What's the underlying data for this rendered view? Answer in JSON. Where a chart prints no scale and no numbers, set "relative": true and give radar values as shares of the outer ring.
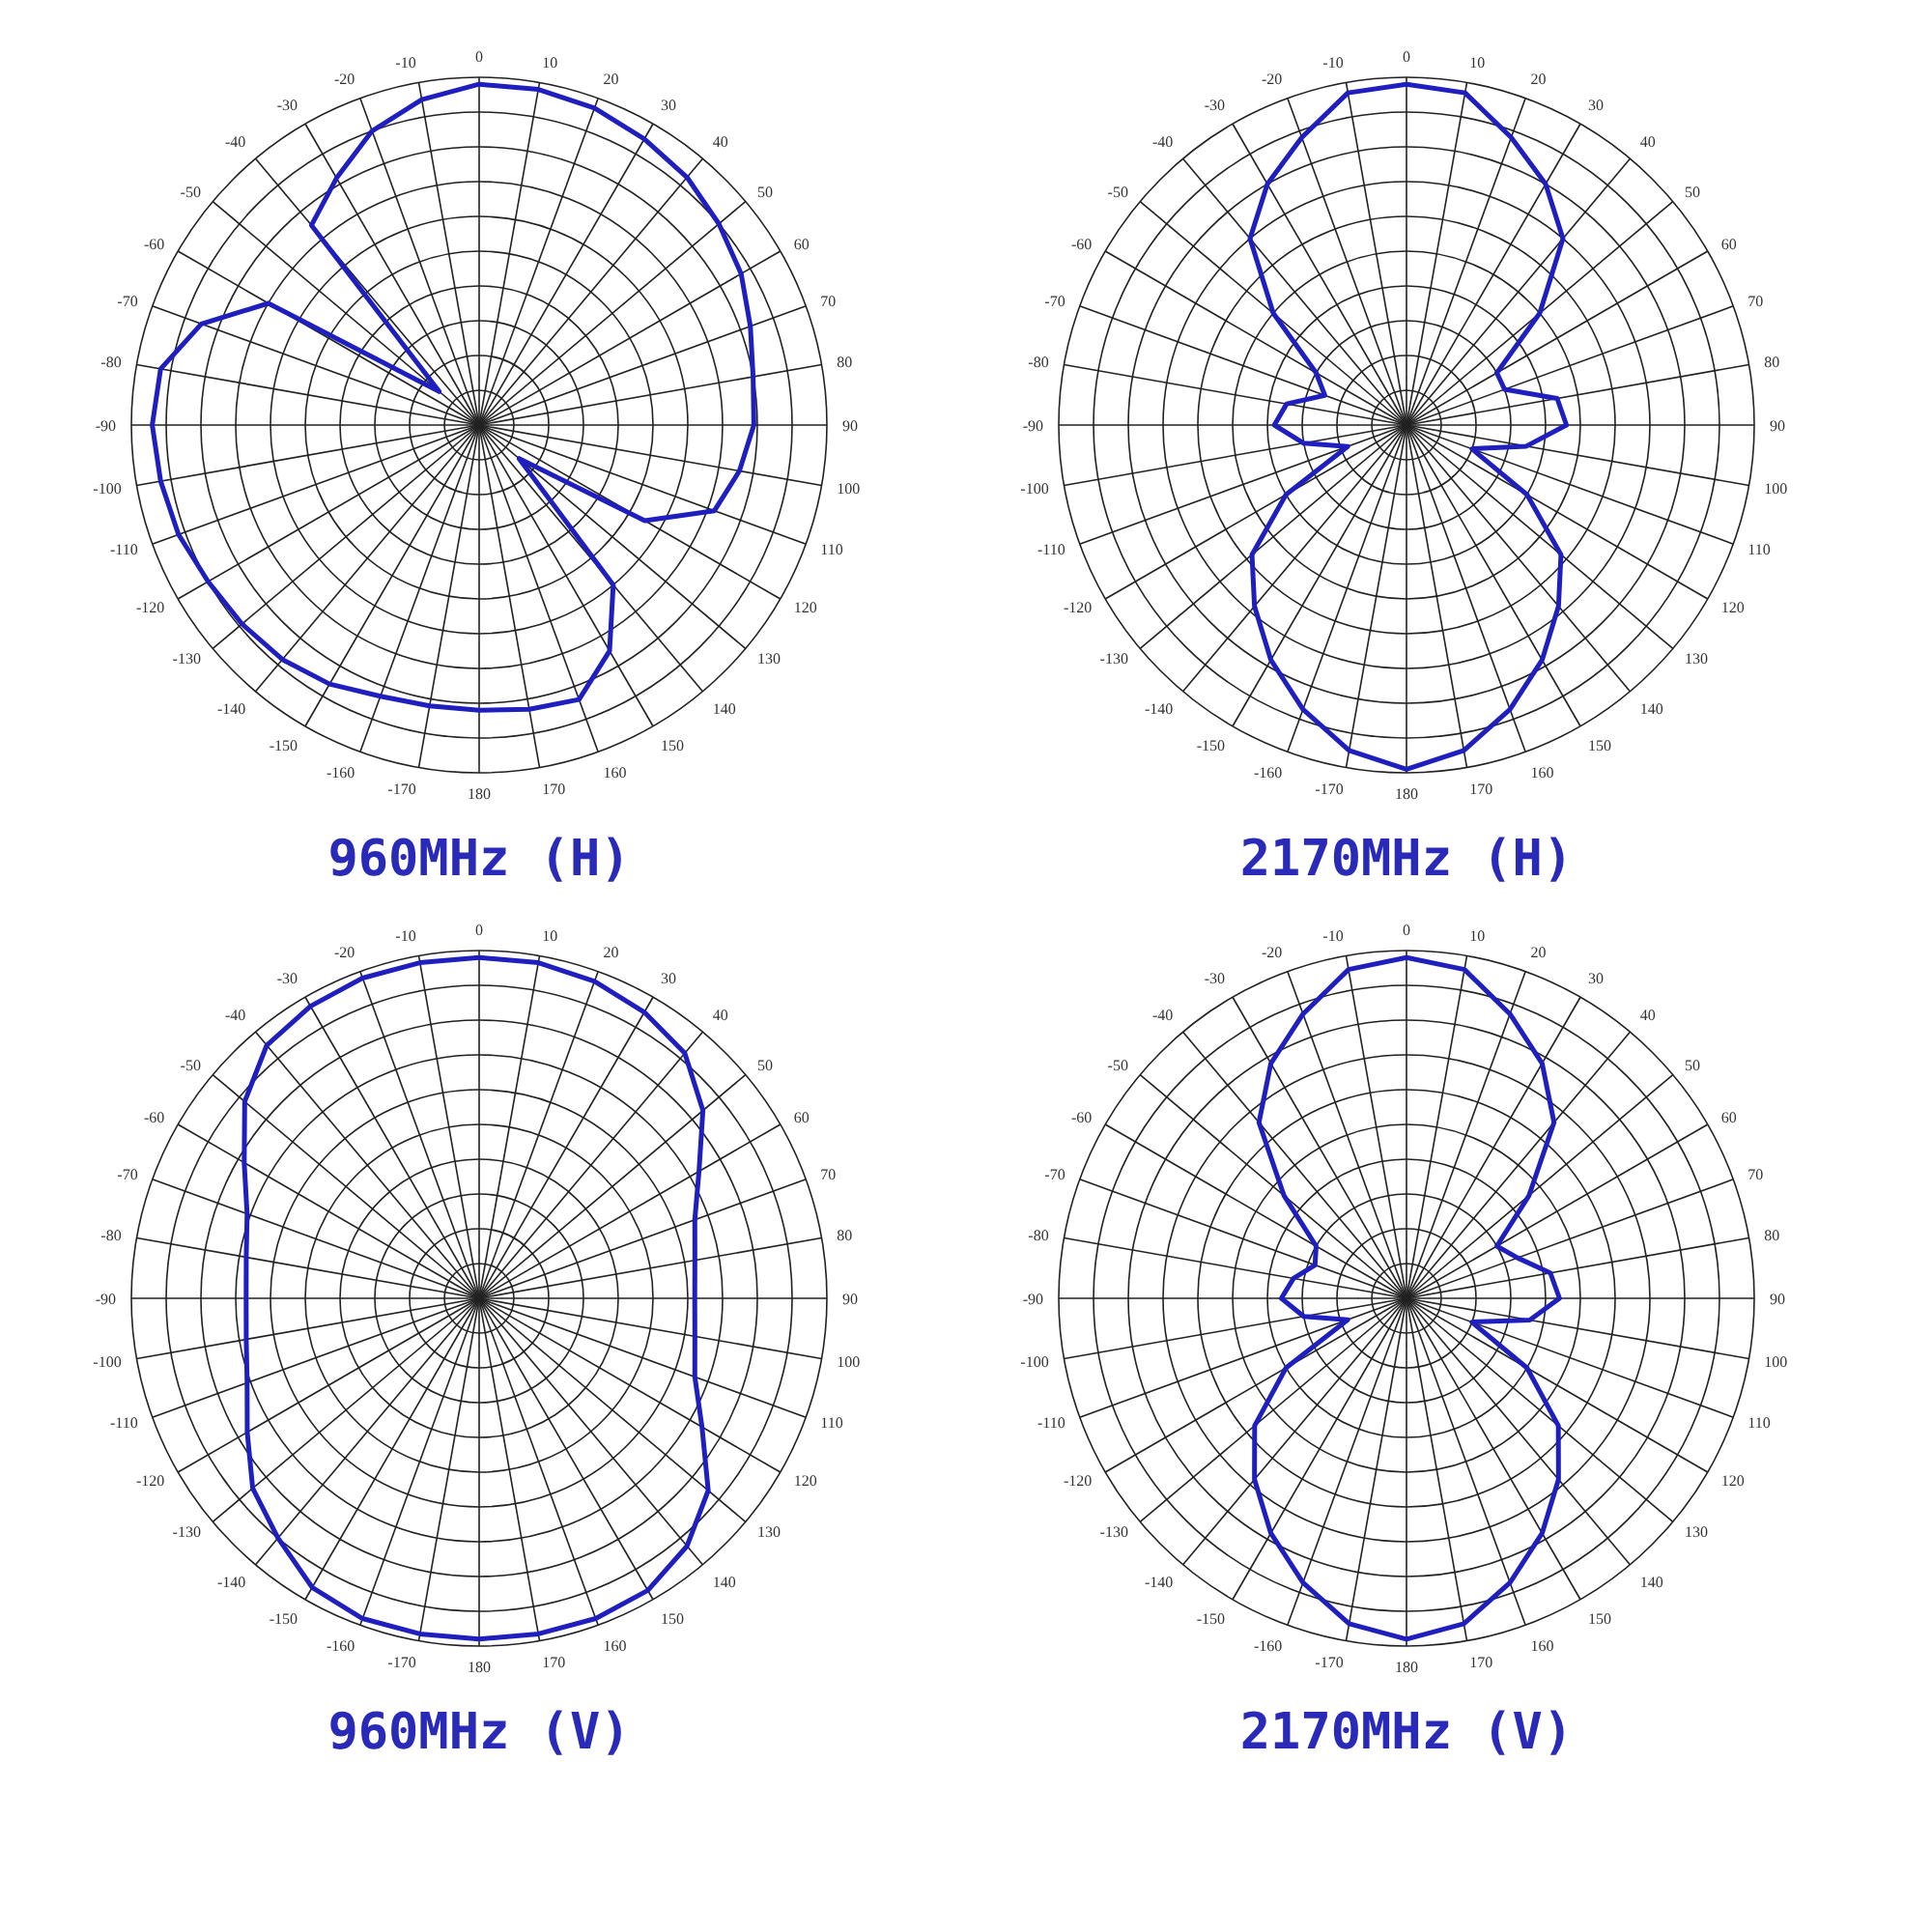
{
  "chart_data": [
    {
      "type": "radar",
      "title": "960MHz (H)",
      "categories": [
        "0",
        "10",
        "20",
        "30",
        "40",
        "50",
        "60",
        "70",
        "80",
        "90",
        "100",
        "110",
        "120",
        "130",
        "140",
        "150",
        "160",
        "170",
        "180",
        "-170",
        "-160",
        "-150",
        "-140",
        "-130",
        "-120",
        "-110",
        "-100",
        "-90",
        "-80",
        "-70",
        "-60",
        "-50",
        "-40",
        "-30",
        "-20",
        "-10"
      ],
      "relative": true,
      "grid": true,
      "marker": "none",
      "series": [
        {
          "color": "#1f1fbf",
          "values": [
            0.98,
            0.98,
            0.97,
            0.95,
            0.93,
            0.9,
            0.87,
            0.83,
            0.8,
            0.79,
            0.76,
            0.72,
            0.55,
            0.15,
            0.6,
            0.75,
            0.84,
            0.83,
            0.82,
            0.82,
            0.83,
            0.86,
            0.88,
            0.89,
            0.9,
            0.92,
            0.93,
            0.94,
            0.93,
            0.85,
            0.7,
            0.15,
            0.75,
            0.82,
            0.9,
            0.95
          ]
        }
      ]
    },
    {
      "type": "radar",
      "title": "2170MHz (H)",
      "categories": [
        "0",
        "10",
        "20",
        "30",
        "40",
        "50",
        "60",
        "70",
        "80",
        "90",
        "100",
        "110",
        "120",
        "130",
        "140",
        "150",
        "160",
        "170",
        "180",
        "-170",
        "-160",
        "-150",
        "-140",
        "-130",
        "-120",
        "-110",
        "-100",
        "-90",
        "-80",
        "-70",
        "-60",
        "-50",
        "-40",
        "-30",
        "-20",
        "-10"
      ],
      "relative": true,
      "grid": true,
      "marker": "none",
      "series": [
        {
          "color": "#1f1fbf",
          "values": [
            0.98,
            0.97,
            0.88,
            0.8,
            0.7,
            0.5,
            0.3,
            0.3,
            0.44,
            0.46,
            0.35,
            0.2,
            0.4,
            0.58,
            0.68,
            0.78,
            0.87,
            0.95,
            0.99,
            0.95,
            0.87,
            0.78,
            0.68,
            0.58,
            0.4,
            0.18,
            0.3,
            0.38,
            0.35,
            0.25,
            0.3,
            0.5,
            0.7,
            0.8,
            0.88,
            0.97
          ]
        }
      ]
    },
    {
      "type": "radar",
      "title": "960MHz (V)",
      "categories": [
        "0",
        "10",
        "20",
        "30",
        "40",
        "50",
        "60",
        "70",
        "80",
        "90",
        "100",
        "110",
        "120",
        "130",
        "140",
        "150",
        "160",
        "170",
        "180",
        "-170",
        "-160",
        "-150",
        "-140",
        "-130",
        "-120",
        "-110",
        "-100",
        "-90",
        "-80",
        "-70",
        "-60",
        "-50",
        "-40",
        "-30",
        "-20",
        "-10"
      ],
      "relative": true,
      "grid": true,
      "marker": "none",
      "series": [
        {
          "color": "#1f1fbf",
          "values": [
            0.98,
            0.98,
            0.97,
            0.95,
            0.92,
            0.84,
            0.73,
            0.66,
            0.63,
            0.62,
            0.63,
            0.66,
            0.74,
            0.86,
            0.93,
            0.97,
            0.98,
            0.98,
            0.98,
            0.98,
            0.98,
            0.96,
            0.9,
            0.85,
            0.77,
            0.71,
            0.68,
            0.67,
            0.68,
            0.71,
            0.78,
            0.88,
            0.95,
            0.97,
            0.98,
            0.98
          ]
        }
      ]
    },
    {
      "type": "radar",
      "title": "2170MHz (V)",
      "categories": [
        "0",
        "10",
        "20",
        "30",
        "40",
        "50",
        "60",
        "70",
        "80",
        "90",
        "100",
        "110",
        "120",
        "130",
        "140",
        "150",
        "160",
        "170",
        "180",
        "-170",
        "-160",
        "-150",
        "-140",
        "-130",
        "-120",
        "-110",
        "-100",
        "-90",
        "-80",
        "-70",
        "-60",
        "-50",
        "-40",
        "-30",
        "-20",
        "-10"
      ],
      "relative": true,
      "grid": true,
      "marker": "none",
      "series": [
        {
          "color": "#1f1fbf",
          "values": [
            0.98,
            0.96,
            0.87,
            0.78,
            0.66,
            0.46,
            0.3,
            0.34,
            0.42,
            0.44,
            0.36,
            0.2,
            0.4,
            0.57,
            0.68,
            0.78,
            0.87,
            0.95,
            0.98,
            0.95,
            0.87,
            0.78,
            0.68,
            0.57,
            0.4,
            0.18,
            0.3,
            0.36,
            0.33,
            0.28,
            0.3,
            0.46,
            0.66,
            0.78,
            0.87,
            0.96
          ]
        }
      ]
    }
  ]
}
